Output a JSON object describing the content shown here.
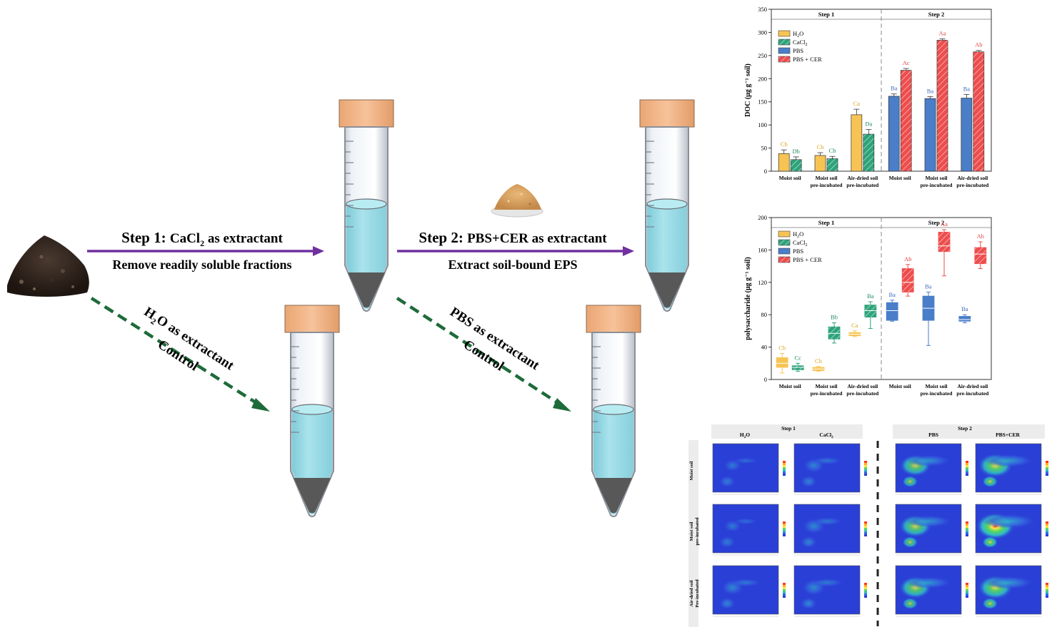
{
  "flow": {
    "step1": {
      "label_prefix": "Step 1: ",
      "label_rest_a": "CaCl",
      "label_sub": "2",
      "label_rest_b": " as extractant",
      "sublabel": "Remove readily soluble fractions"
    },
    "step2": {
      "label_prefix": "Step 2: ",
      "label_rest": "PBS+CER as extractant",
      "sublabel": "Extract soil-bound EPS"
    },
    "control1": {
      "label_a": "H",
      "label_sub": "2",
      "label_b": "O as extractant",
      "sublabel": "Control"
    },
    "control2": {
      "label": "PBS as extractant",
      "sublabel": "Control"
    },
    "colors": {
      "arrow": "#7030a0",
      "dashed": "#1e6b3a",
      "cap": "#f4b183",
      "liquid": "#9fdde8",
      "pellet": "#555555"
    }
  },
  "series_legend": [
    {
      "key": "H2O",
      "text_a": "H",
      "sub": "2",
      "text_b": "O",
      "color": "#f7c454"
    },
    {
      "key": "CaCl2",
      "text_a": "CaCl",
      "sub": "2",
      "text_b": "",
      "color": "#2ea37a"
    },
    {
      "key": "PBS",
      "text_a": "PBS",
      "sub": "",
      "text_b": "",
      "color": "#4a7ec9"
    },
    {
      "key": "PBSCER",
      "text_a": "PBS + CER",
      "sub": "",
      "text_b": "",
      "color": "#ee4d4d"
    }
  ],
  "chart_data": [
    {
      "type": "bar",
      "ylabel": "DOC (μg g⁻¹ soil)",
      "ylim": [
        0,
        350
      ],
      "yticks": [
        0,
        50,
        100,
        150,
        200,
        250,
        300,
        350
      ],
      "panel_headers": [
        "Step 1",
        "Step 2"
      ],
      "group_labels": [
        [
          "Moist soil"
        ],
        [
          "Moist soil",
          "pre-incubated"
        ],
        [
          "Air-dried soil",
          "pre-incubated"
        ],
        [
          "Moist soil"
        ],
        [
          "Moist soil",
          "pre-incubated"
        ],
        [
          "Air-dried soil",
          "pre-incubated"
        ]
      ],
      "groups": [
        {
          "bars": [
            {
              "series": "H2O",
              "value": 38,
              "err": 8,
              "letter": "Cb"
            },
            {
              "series": "CaCl2",
              "value": 25,
              "err": 6,
              "letter": "Db"
            }
          ]
        },
        {
          "bars": [
            {
              "series": "H2O",
              "value": 34,
              "err": 6,
              "letter": "Cb"
            },
            {
              "series": "CaCl2",
              "value": 27,
              "err": 5,
              "letter": "Cb"
            }
          ]
        },
        {
          "bars": [
            {
              "series": "H2O",
              "value": 122,
              "err": 12,
              "letter": "Ca"
            },
            {
              "series": "CaCl2",
              "value": 80,
              "err": 10,
              "letter": "Da"
            }
          ]
        },
        {
          "bars": [
            {
              "series": "PBS",
              "value": 162,
              "err": 5,
              "letter": "Ba"
            },
            {
              "series": "PBSCER",
              "value": 218,
              "err": 4,
              "letter": "Ac"
            }
          ]
        },
        {
          "bars": [
            {
              "series": "PBS",
              "value": 157,
              "err": 4,
              "letter": "Ba"
            },
            {
              "series": "PBSCER",
              "value": 283,
              "err": 3,
              "letter": "Aa"
            }
          ]
        },
        {
          "bars": [
            {
              "series": "PBS",
              "value": 158,
              "err": 8,
              "letter": "Ba"
            },
            {
              "series": "PBSCER",
              "value": 258,
              "err": 3,
              "letter": "Ab"
            }
          ]
        }
      ]
    },
    {
      "type": "box",
      "ylabel": "polysaccharide (μg g⁻¹ soil)",
      "ylim": [
        0,
        200
      ],
      "yticks": [
        0,
        40,
        80,
        120,
        160,
        200
      ],
      "panel_headers": [
        "Step 1",
        "Step 2"
      ],
      "group_labels": [
        [
          "Moist soil"
        ],
        [
          "Moist soil",
          "pre-incubated"
        ],
        [
          "Air-dried soil",
          "pre-incubated"
        ],
        [
          "Moist soil"
        ],
        [
          "Moist soil",
          "pre-incubated"
        ],
        [
          "Air-dried soil",
          "pre-incubated"
        ]
      ],
      "groups": [
        {
          "boxes": [
            {
              "series": "H2O",
              "min": 8,
              "q1": 15,
              "median": 20,
              "q3": 27,
              "max": 32,
              "letter": "Cb"
            },
            {
              "series": "CaCl2",
              "min": 10,
              "q1": 12,
              "median": 15,
              "q3": 17,
              "max": 20,
              "letter": "Cc"
            }
          ]
        },
        {
          "boxes": [
            {
              "series": "H2O",
              "min": 10,
              "q1": 11,
              "median": 13,
              "q3": 15,
              "max": 16,
              "letter": "Cb"
            },
            {
              "series": "CaCl2",
              "min": 45,
              "q1": 50,
              "median": 57,
              "q3": 65,
              "max": 70,
              "letter": "Bb"
            }
          ]
        },
        {
          "boxes": [
            {
              "series": "H2O",
              "min": 53,
              "q1": 54,
              "median": 56,
              "q3": 58,
              "max": 60,
              "letter": "Ca"
            },
            {
              "series": "CaCl2",
              "min": 63,
              "q1": 77,
              "median": 85,
              "q3": 92,
              "max": 96,
              "letter": "Ba"
            }
          ]
        },
        {
          "boxes": [
            {
              "series": "PBS",
              "min": 72,
              "q1": 73,
              "median": 85,
              "q3": 95,
              "max": 98,
              "letter": "Ba"
            },
            {
              "series": "PBSCER",
              "min": 103,
              "q1": 108,
              "median": 120,
              "q3": 137,
              "max": 142,
              "letter": "Ab"
            }
          ]
        },
        {
          "boxes": [
            {
              "series": "PBS",
              "min": 42,
              "q1": 73,
              "median": 88,
              "q3": 103,
              "max": 108,
              "letter": "Ba"
            },
            {
              "series": "PBSCER",
              "min": 128,
              "q1": 158,
              "median": 165,
              "q3": 182,
              "max": 185,
              "letter": "Aa"
            }
          ]
        },
        {
          "boxes": [
            {
              "series": "PBS",
              "min": 70,
              "q1": 72,
              "median": 74,
              "q3": 78,
              "max": 80,
              "letter": "Ba"
            },
            {
              "series": "PBSCER",
              "min": 137,
              "q1": 143,
              "median": 155,
              "q3": 163,
              "max": 170,
              "letter": "Ab"
            }
          ]
        }
      ]
    },
    {
      "type": "heatmap",
      "step_headers": [
        "Step 1",
        "Step 2"
      ],
      "column_headers": [
        {
          "text_a": "H",
          "sub": "2",
          "text_b": "O"
        },
        {
          "text_a": "CaCl",
          "sub": "2",
          "text_b": ""
        },
        {
          "text_a": "PBS",
          "sub": "",
          "text_b": ""
        },
        {
          "text_a": "PBS+CER",
          "sub": "",
          "text_b": ""
        }
      ],
      "row_headers": [
        [
          "Moist soil"
        ],
        [
          "Moist soil",
          "pre-incubated"
        ],
        [
          "Air-dried soil",
          "Pre-incubated"
        ]
      ],
      "intensity": [
        [
          0.1,
          0.25,
          0.7,
          0.85
        ],
        [
          0.1,
          0.3,
          0.75,
          1.0
        ],
        [
          0.3,
          0.35,
          0.75,
          0.85
        ]
      ]
    }
  ]
}
